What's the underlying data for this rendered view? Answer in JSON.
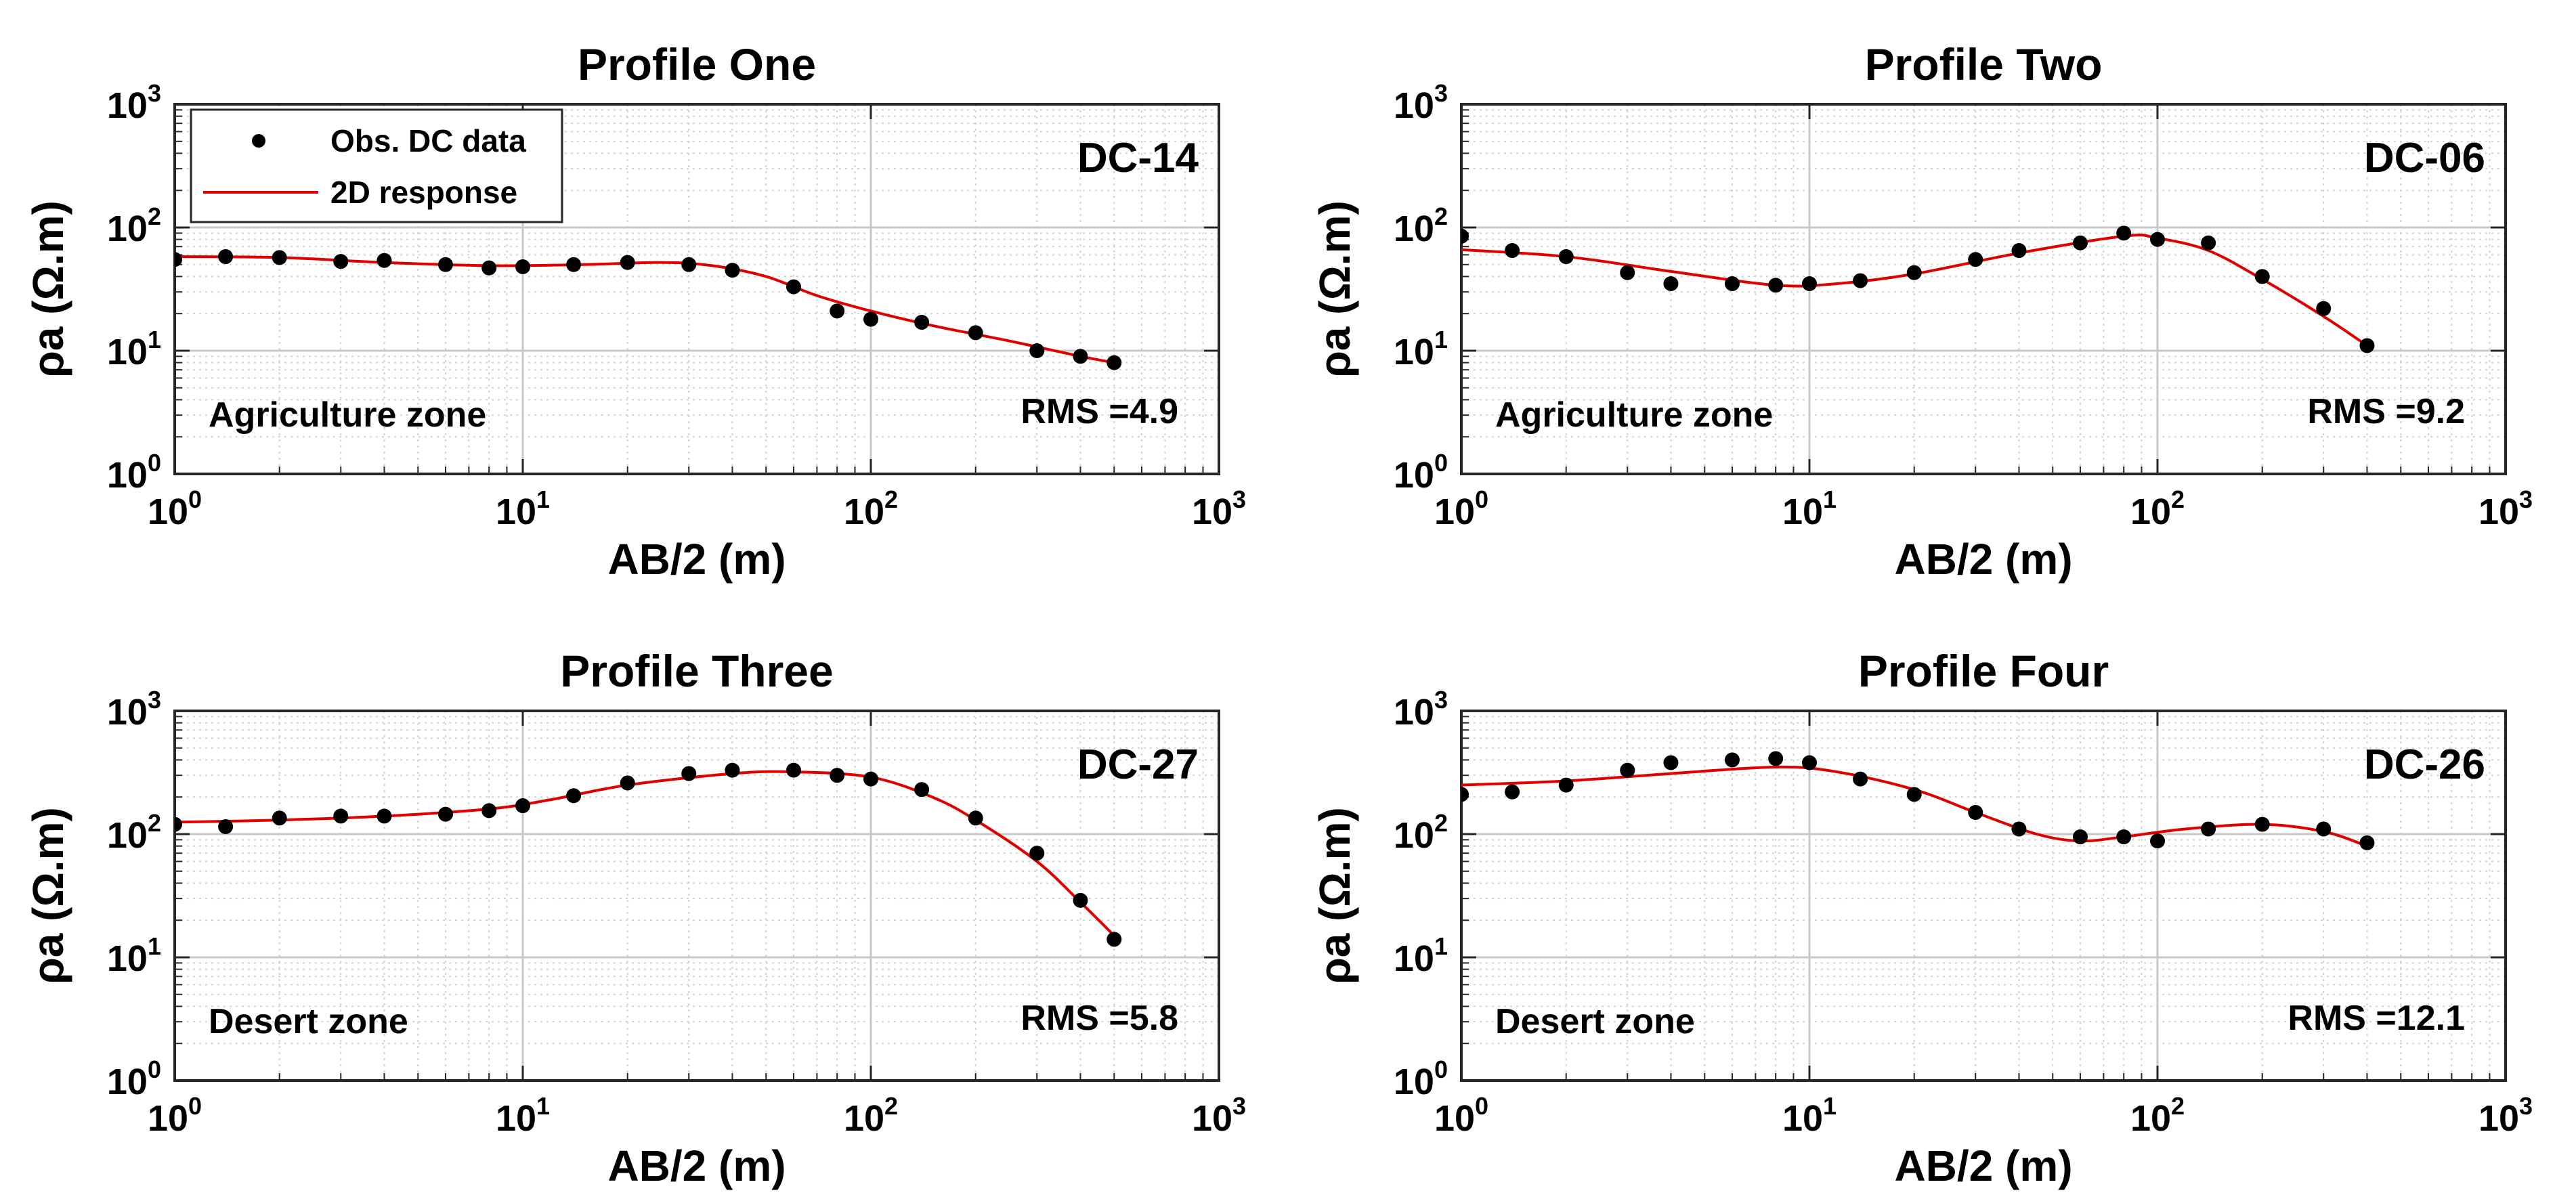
{
  "colors": {
    "observed": "#000000",
    "model": "#e00000",
    "grid_major": "#c8c8c8",
    "grid_minor": "#d2d2d2",
    "axes": "#262626"
  },
  "legend": {
    "observed": "Obs. DC data",
    "model": "2D response"
  },
  "chart_data": [
    {
      "type": "scatter+line",
      "title": "Profile One",
      "station": "DC-14",
      "zone": "Agriculture zone",
      "rms_label": "RMS =4.9",
      "xlabel": "AB/2 (m)",
      "ylabel": "ρa (Ω.m)",
      "xscale": "log",
      "yscale": "log",
      "xlim": [
        1,
        1000
      ],
      "ylim": [
        1,
        1000
      ],
      "xticks": [
        "10^0",
        "10^1",
        "10^2",
        "10^3"
      ],
      "yticks": [
        "10^0",
        "10^1",
        "10^2",
        "10^3"
      ],
      "grid": true,
      "legend_position": "top-left",
      "series": [
        {
          "name": "Obs. DC data",
          "x": [
            1,
            1.4,
            2,
            3,
            4,
            6,
            8,
            10,
            14,
            20,
            30,
            40,
            60,
            80,
            100,
            140,
            200,
            300,
            400,
            500
          ],
          "y": [
            55,
            58,
            57,
            53,
            54,
            50,
            47,
            48,
            50,
            52,
            50,
            45,
            33,
            21,
            18,
            17,
            14,
            10,
            9,
            8
          ]
        },
        {
          "name": "2D response",
          "x": [
            1,
            2,
            4,
            8,
            15,
            25,
            35,
            50,
            70,
            100,
            150,
            250,
            400,
            500
          ],
          "y": [
            58,
            57,
            52,
            49,
            50,
            52,
            49,
            40,
            28,
            21,
            16,
            12,
            9,
            8
          ]
        }
      ]
    },
    {
      "type": "scatter+line",
      "title": "Profile Two",
      "station": "DC-06",
      "zone": "Agriculture zone",
      "rms_label": "RMS =9.2",
      "xlabel": "AB/2 (m)",
      "ylabel": "ρa (Ω.m)",
      "xscale": "log",
      "yscale": "log",
      "xlim": [
        1,
        1000
      ],
      "ylim": [
        1,
        1000
      ],
      "xticks": [
        "10^0",
        "10^1",
        "10^2",
        "10^3"
      ],
      "yticks": [
        "10^0",
        "10^1",
        "10^2",
        "10^3"
      ],
      "grid": true,
      "series": [
        {
          "name": "Obs. DC data",
          "x": [
            1,
            1.4,
            2,
            3,
            4,
            6,
            8,
            10,
            14,
            20,
            30,
            40,
            60,
            80,
            100,
            140,
            200,
            300,
            400
          ],
          "y": [
            85,
            65,
            58,
            43,
            35,
            35,
            34,
            35,
            37,
            43,
            55,
            65,
            75,
            90,
            80,
            75,
            40,
            22,
            11
          ]
        },
        {
          "name": "2D response",
          "x": [
            1,
            2,
            4,
            8,
            12,
            20,
            40,
            80,
            100,
            140,
            200,
            300,
            400
          ],
          "y": [
            66,
            58,
            44,
            34,
            35,
            42,
            62,
            85,
            82,
            65,
            38,
            19,
            11
          ]
        }
      ]
    },
    {
      "type": "scatter+line",
      "title": "Profile Three",
      "station": "DC-27",
      "zone": "Desert zone",
      "rms_label": "RMS =5.8",
      "xlabel": "AB/2 (m)",
      "ylabel": "ρa (Ω.m)",
      "xscale": "log",
      "yscale": "log",
      "xlim": [
        1,
        1000
      ],
      "ylim": [
        1,
        1000
      ],
      "xticks": [
        "10^0",
        "10^1",
        "10^2",
        "10^3"
      ],
      "yticks": [
        "10^0",
        "10^1",
        "10^2",
        "10^3"
      ],
      "grid": true,
      "series": [
        {
          "name": "Obs. DC data",
          "x": [
            1,
            1.4,
            2,
            3,
            4,
            6,
            8,
            10,
            14,
            20,
            30,
            40,
            60,
            80,
            100,
            140,
            200,
            300,
            400,
            500
          ],
          "y": [
            120,
            115,
            135,
            140,
            140,
            145,
            155,
            170,
            205,
            260,
            310,
            330,
            330,
            300,
            280,
            230,
            135,
            70,
            29,
            14
          ]
        },
        {
          "name": "2D response",
          "x": [
            1,
            2,
            4,
            8,
            12,
            20,
            40,
            60,
            100,
            150,
            200,
            300,
            400,
            500
          ],
          "y": [
            125,
            130,
            140,
            160,
            190,
            250,
            310,
            320,
            290,
            200,
            130,
            60,
            28,
            15
          ]
        }
      ]
    },
    {
      "type": "scatter+line",
      "title": "Profile Four",
      "station": "DC-26",
      "zone": "Desert zone",
      "rms_label": "RMS =12.1",
      "xlabel": "AB/2 (m)",
      "ylabel": "ρa (Ω.m)",
      "xscale": "log",
      "yscale": "log",
      "xlim": [
        1,
        1000
      ],
      "ylim": [
        1,
        1000
      ],
      "xticks": [
        "10^0",
        "10^1",
        "10^2",
        "10^3"
      ],
      "yticks": [
        "10^0",
        "10^1",
        "10^2",
        "10^3"
      ],
      "grid": true,
      "series": [
        {
          "name": "Obs. DC data",
          "x": [
            1,
            1.4,
            2,
            3,
            4,
            6,
            8,
            10,
            14,
            20,
            30,
            40,
            60,
            80,
            100,
            140,
            200,
            300,
            400
          ],
          "y": [
            210,
            220,
            250,
            330,
            380,
            400,
            410,
            380,
            280,
            210,
            150,
            110,
            95,
            95,
            88,
            110,
            120,
            110,
            85
          ]
        },
        {
          "name": "2D response",
          "x": [
            1,
            2,
            4,
            8,
            12,
            20,
            30,
            45,
            60,
            80,
            120,
            200,
            300,
            400
          ],
          "y": [
            250,
            270,
            310,
            350,
            320,
            230,
            150,
            100,
            88,
            95,
            110,
            120,
            105,
            80
          ]
        }
      ]
    }
  ]
}
